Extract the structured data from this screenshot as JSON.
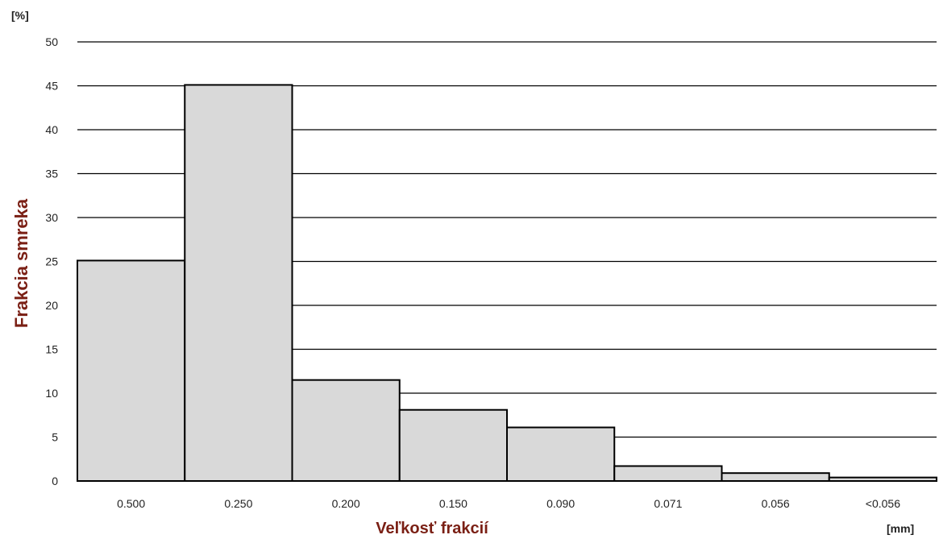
{
  "chart_data": {
    "type": "bar",
    "categories": [
      "0.500",
      "0.250",
      "0.200",
      "0.150",
      "0.090",
      "0.071",
      "0.056",
      "<0.056"
    ],
    "values": [
      25.1,
      45.1,
      11.5,
      8.1,
      6.1,
      1.7,
      0.9,
      0.4
    ],
    "xlabel": "Veľkosť frakcií",
    "ylabel": "Frakcia smreka",
    "y_unit": "[%]",
    "x_unit": "[mm]",
    "ylim": [
      0,
      50
    ],
    "yticks": [
      "0",
      "5",
      "10",
      "15",
      "20",
      "25",
      "30",
      "35",
      "40",
      "45",
      "50"
    ],
    "grid": true,
    "bar_color": "#d9d9d9",
    "edge_color": "#000000",
    "grid_color": "#000000",
    "label_color": "#7a1f14"
  }
}
